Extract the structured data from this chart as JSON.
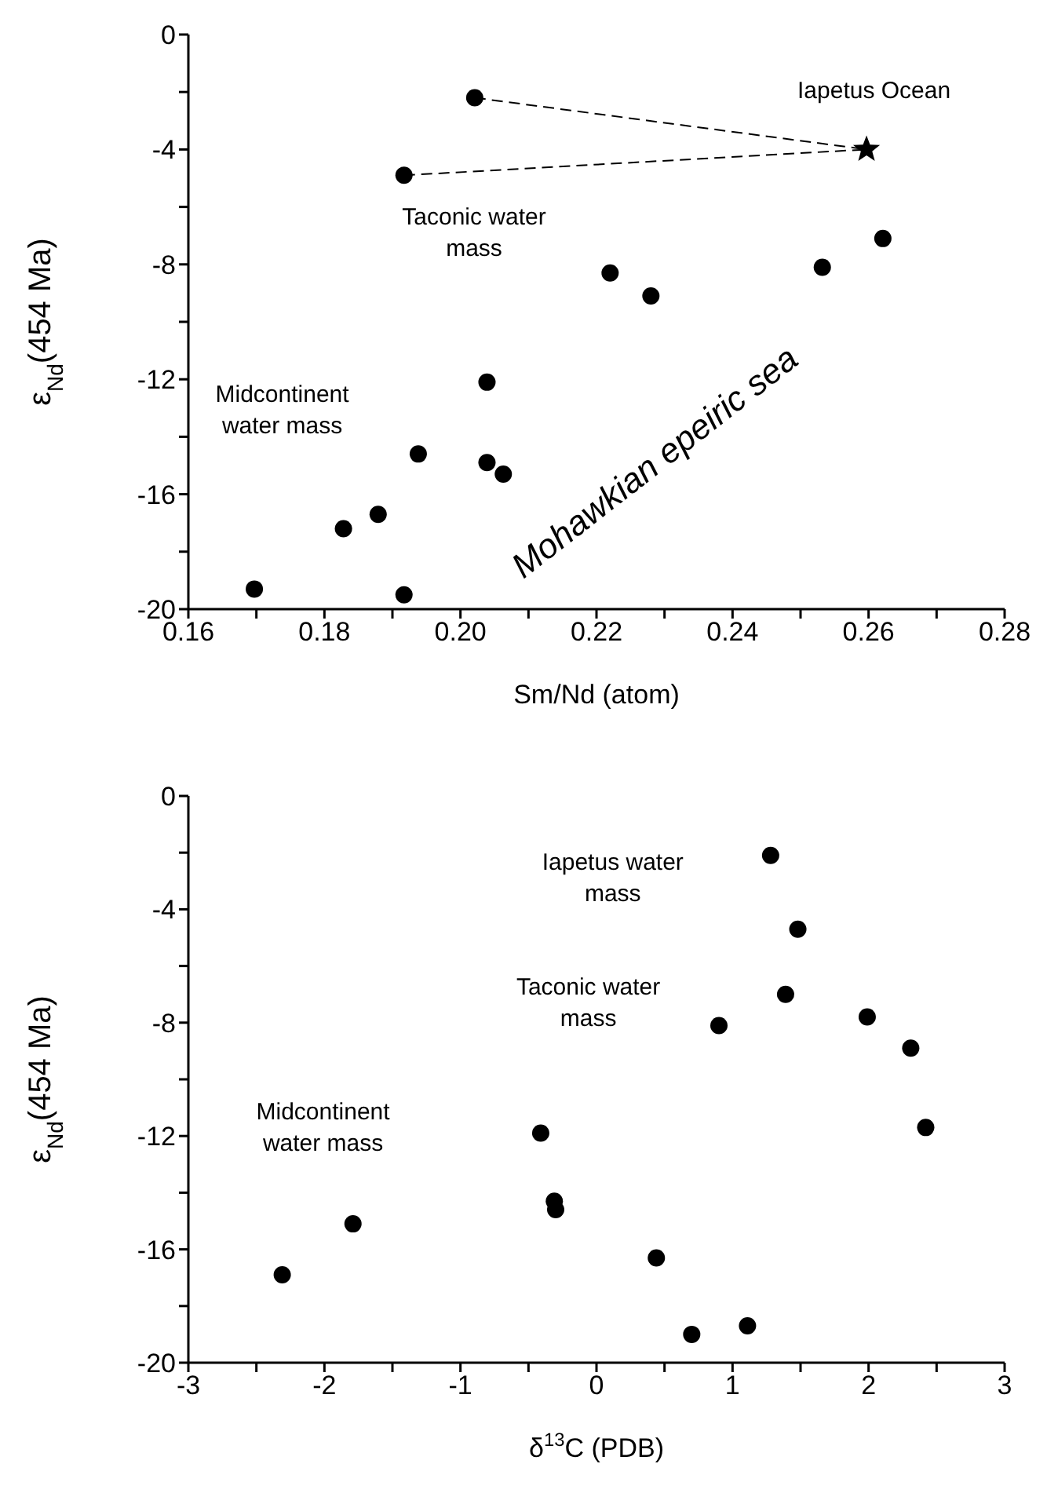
{
  "chart_data": [
    {
      "type": "scatter",
      "xlabel": "Sm/Nd (atom)",
      "ylabel": "ε$_{Nd}$(454 Ma)",
      "xlim": [
        0.16,
        0.28
      ],
      "xticks": [
        {
          "value": 0.16,
          "label": "0.16"
        },
        {
          "value": 0.17,
          "label": null
        },
        {
          "value": 0.18,
          "label": "0.18"
        },
        {
          "value": 0.19,
          "label": null
        },
        {
          "value": 0.2,
          "label": "0.20"
        },
        {
          "value": 0.21,
          "label": null
        },
        {
          "value": 0.22,
          "label": "0.22"
        },
        {
          "value": 0.23,
          "label": null
        },
        {
          "value": 0.24,
          "label": "0.24"
        },
        {
          "value": 0.25,
          "label": null
        },
        {
          "value": 0.26,
          "label": "0.26"
        },
        {
          "value": 0.27,
          "label": null
        },
        {
          "value": 0.28,
          "label": "0.28"
        }
      ],
      "ylim": [
        -20,
        0
      ],
      "yticks": [
        -20,
        {
          "value": -18,
          "label": null
        },
        -16,
        {
          "value": -14,
          "label": null
        },
        -12,
        {
          "value": -10,
          "label": null
        },
        -8,
        {
          "value": -6,
          "label": null
        },
        -4,
        {
          "value": -2,
          "label": null
        },
        0
      ],
      "series": [
        {
          "type": "line",
          "color": "#000000",
          "line_style": "dashed",
          "marker": "none",
          "x": [
            0.2021,
            0.2597
          ],
          "values": [
            -2.2,
            -4.0
          ]
        },
        {
          "type": "line",
          "color": "#000000",
          "line_style": "dashed",
          "marker": "none",
          "x": [
            0.1917,
            0.2597
          ],
          "values": [
            -4.9,
            -4.0
          ]
        },
        {
          "color": "#000000",
          "marker": "circle",
          "x": [
            0.2021,
            0.1917
          ],
          "values": [
            -2.2,
            -4.9
          ]
        },
        {
          "color": "#000000",
          "marker": "star",
          "x": [
            0.2597
          ],
          "values": [
            -4.0
          ]
        },
        {
          "color": "#000000",
          "marker": "circle",
          "x": [
            0.222,
            0.228,
            0.2532,
            0.2621
          ],
          "values": [
            -8.3,
            -9.1,
            -8.1,
            -7.1
          ]
        },
        {
          "color": "#000000",
          "marker": "circle",
          "x": [
            0.1697,
            0.1828,
            0.1879,
            0.1938,
            0.2039,
            0.2039,
            0.2063,
            0.1917
          ],
          "values": [
            -19.3,
            -17.2,
            -16.7,
            -14.6,
            -12.1,
            -14.9,
            -15.3,
            -19.5
          ]
        }
      ],
      "annotations": [
        "Iapetus Ocean",
        "Taconic water mass",
        "Midcontinent water mass",
        "Mohawkian epeiric sea"
      ]
    },
    {
      "type": "scatter",
      "xlabel": "δ$^{13}$C (PDB)",
      "ylabel": "ε$_{Nd}$(454 Ma)",
      "xlim": [
        -3,
        3
      ],
      "xticks": [
        -3,
        {
          "value": -2.5,
          "label": null
        },
        -2,
        {
          "value": -1.5,
          "label": null
        },
        -1,
        {
          "value": -0.5,
          "label": null
        },
        0,
        {
          "value": 0.5,
          "label": null
        },
        1,
        {
          "value": 1.5,
          "label": null
        },
        2,
        {
          "value": 2.5,
          "label": null
        },
        3
      ],
      "ylim": [
        -20,
        0
      ],
      "yticks": [
        -20,
        {
          "value": -18,
          "label": null
        },
        -16,
        {
          "value": -14,
          "label": null
        },
        -12,
        {
          "value": -10,
          "label": null
        },
        -8,
        {
          "value": -6,
          "label": null
        },
        -4,
        {
          "value": -2,
          "label": null
        },
        0
      ],
      "series": [
        {
          "color": "#000000",
          "marker": "circle",
          "x": [
            1.28,
            1.48
          ],
          "values": [
            -2.1,
            -4.7
          ]
        },
        {
          "color": "#000000",
          "marker": "circle",
          "x": [
            0.9,
            1.39,
            1.99,
            2.31,
            2.42
          ],
          "values": [
            -8.1,
            -7.0,
            -7.8,
            -8.9,
            -11.7
          ]
        },
        {
          "color": "#000000",
          "marker": "circle",
          "x": [
            -2.31,
            -1.79,
            -0.41,
            -0.31,
            -0.3,
            0.44,
            0.7,
            1.11
          ],
          "values": [
            -16.9,
            -15.1,
            -11.9,
            -14.3,
            -14.6,
            -16.3,
            -19.0,
            -18.7
          ]
        }
      ],
      "annotations": [
        "Iapetus water mass",
        "Taconic water mass",
        "Midcontinent water mass"
      ]
    }
  ]
}
